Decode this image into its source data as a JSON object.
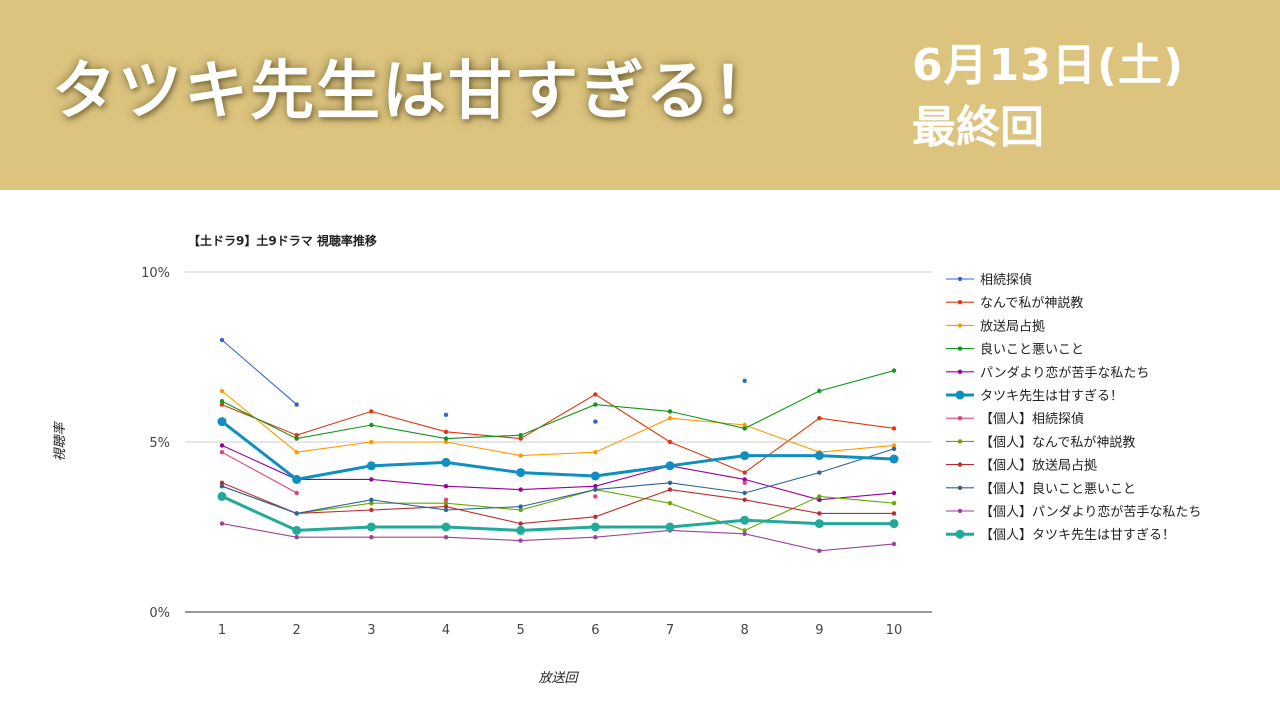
{
  "banner": {
    "title": "タツキ先生は甘すぎる！",
    "date": "6月13日(土)",
    "final": "最終回",
    "bg_color": "#dcc47f"
  },
  "chart_data": {
    "type": "line",
    "title": "【土ドラ9】土9ドラマ 視聴率推移",
    "xlabel": "放送回",
    "ylabel": "視聴率",
    "x": [
      1,
      2,
      3,
      4,
      5,
      6,
      7,
      8,
      9,
      10
    ],
    "ylim": [
      0,
      10
    ],
    "yticks": [
      "0%",
      "5%",
      "10%"
    ],
    "grid": true,
    "legend_position": "right",
    "series": [
      {
        "name": "相続探偵",
        "color": "#3366cc",
        "values": [
          8.0,
          6.1,
          null,
          5.8,
          null,
          5.6,
          null,
          6.8,
          null,
          null
        ]
      },
      {
        "name": "なんで私が神説教",
        "color": "#dc3912",
        "values": [
          6.1,
          5.2,
          5.9,
          5.3,
          5.1,
          6.4,
          5.0,
          4.1,
          5.7,
          5.4
        ]
      },
      {
        "name": "放送局占拠",
        "color": "#ff9900",
        "values": [
          6.5,
          4.7,
          5.0,
          5.0,
          4.6,
          4.7,
          5.7,
          5.5,
          4.7,
          4.9
        ]
      },
      {
        "name": "良いこと悪いこと",
        "color": "#109618",
        "values": [
          6.2,
          5.1,
          5.5,
          5.1,
          5.2,
          6.1,
          5.9,
          5.4,
          6.5,
          7.1
        ]
      },
      {
        "name": "パンダより恋が苦手な私たち",
        "color": "#990099",
        "values": [
          4.9,
          3.9,
          3.9,
          3.7,
          3.6,
          3.7,
          4.3,
          3.9,
          3.3,
          3.5
        ]
      },
      {
        "name": "タツキ先生は甘すぎる！",
        "color": "#0e8fc0",
        "values": [
          5.6,
          3.9,
          4.3,
          4.4,
          4.1,
          4.0,
          4.3,
          4.6,
          4.6,
          4.5
        ]
      },
      {
        "name": "【個人】相続探偵",
        "color": "#dd4477",
        "values": [
          4.7,
          3.5,
          null,
          3.3,
          null,
          3.4,
          null,
          3.8,
          null,
          null
        ]
      },
      {
        "name": "【個人】なんで私が神説教",
        "color": "#66aa00",
        "values": [
          3.7,
          2.9,
          3.2,
          3.2,
          3.0,
          3.6,
          3.2,
          2.4,
          3.4,
          3.2
        ]
      },
      {
        "name": "【個人】放送局占拠",
        "color": "#b82e2e",
        "values": [
          3.8,
          2.9,
          3.0,
          3.1,
          2.6,
          2.8,
          3.6,
          3.3,
          2.9,
          2.9
        ]
      },
      {
        "name": "【個人】良いこと悪いこと",
        "color": "#316395",
        "values": [
          3.7,
          2.9,
          3.3,
          3.0,
          3.1,
          3.6,
          3.8,
          3.5,
          4.1,
          4.8
        ]
      },
      {
        "name": "【個人】パンダより恋が苦手な私たち",
        "color": "#994499",
        "values": [
          2.6,
          2.2,
          2.2,
          2.2,
          2.1,
          2.2,
          2.4,
          2.3,
          1.8,
          2.0
        ]
      },
      {
        "name": "【個人】タツキ先生は甘すぎる！",
        "color": "#22aa99",
        "values": [
          3.4,
          2.4,
          2.5,
          2.5,
          2.4,
          2.5,
          2.5,
          2.7,
          2.6,
          2.6
        ]
      }
    ],
    "highlight_series": [
      "タツキ先生は甘すぎる！",
      "【個人】タツキ先生は甘すぎる！"
    ]
  }
}
